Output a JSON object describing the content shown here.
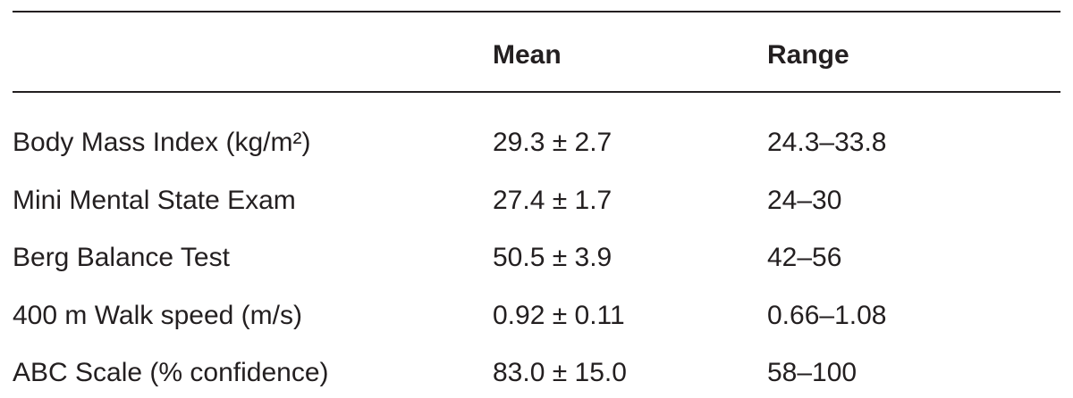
{
  "table": {
    "columns": [
      "Mean",
      "Range"
    ],
    "rows": [
      [
        "Body Mass Index (kg/m²)",
        "29.3 ± 2.7",
        "24.3–33.8"
      ],
      [
        "Mini Mental State Exam",
        "27.4 ± 1.7",
        "24–30"
      ],
      [
        "Berg Balance Test",
        "50.5 ± 3.9",
        "42–56"
      ],
      [
        "400 m Walk speed (m/s)",
        "0.92 ± 0.11",
        "0.66–1.08"
      ],
      [
        "ABC Scale (% confidence)",
        "83.0 ± 15.0",
        "58–100"
      ]
    ]
  }
}
